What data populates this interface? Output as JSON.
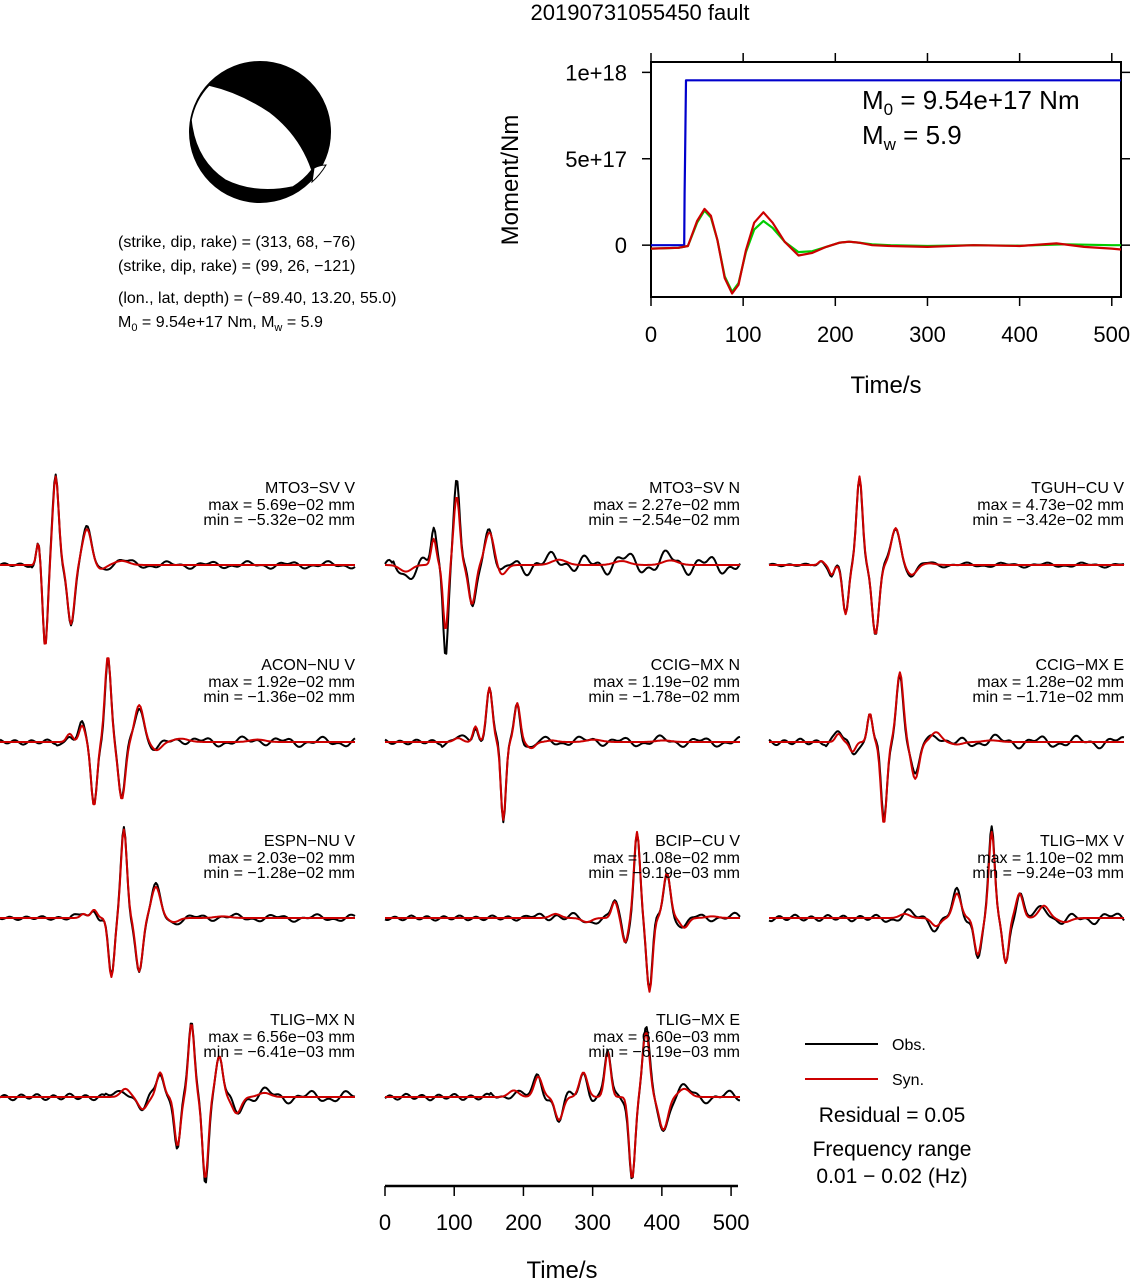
{
  "title": "20190731055450 fault",
  "beachball": {
    "colors": {
      "fill": "#000000",
      "background": "#ffffff"
    },
    "planes": [
      {
        "strike": 313,
        "dip": 68,
        "rake": -76
      },
      {
        "strike": 99,
        "dip": 26,
        "rake": -121
      }
    ],
    "info": {
      "line1": "(strike, dip, rake) = (313, 68, −76)",
      "line2": "(strike, dip, rake) = (99, 26, −121)",
      "line3": "(lon., lat, depth) = (−89.40, 13.20, 55.0)",
      "line4_m0_prefix": "M",
      "line4_m0_sub": "0",
      "line4_m0_rest": " = 9.54e+17 Nm, M",
      "line4_mw_sub": "w",
      "line4_mw_rest": " = 5.9"
    }
  },
  "chart_data": [
    {
      "type": "line",
      "xlabel": "Time/s",
      "ylabel": "Moment/Nm",
      "xlim": [
        0,
        510
      ],
      "ylim": [
        -300000000000000000,
        1060000000000000000
      ],
      "xticks": [
        0,
        100,
        200,
        300,
        400,
        500
      ],
      "xtick_labels": [
        "0",
        "100",
        "200",
        "300",
        "400",
        "500"
      ],
      "yticks": [
        0,
        500000000000000000,
        1000000000000000000
      ],
      "ytick_labels": [
        "0",
        "5e+17",
        "1e+18"
      ],
      "grid": false,
      "annotation": {
        "m0_symbol": "M",
        "m0_sub": "0",
        "m0_value": " = 9.54e+17 Nm",
        "mw_symbol": "M",
        "mw_sub": "w",
        "mw_value": " = 5.9"
      },
      "series": [
        {
          "color": "#0000cc",
          "x": [
            0,
            36,
            36.5,
            37,
            38,
            510
          ],
          "y": [
            0,
            0,
            300000000000000000,
            520000000000000000,
            954000000000000000,
            954000000000000000
          ]
        },
        {
          "color": "#00cc00",
          "x": [
            0,
            30,
            40,
            50,
            58,
            65,
            72,
            80,
            88,
            95,
            103,
            112,
            122,
            132,
            145,
            160,
            175,
            190,
            205,
            215,
            225,
            240,
            260,
            300,
            350,
            400,
            450,
            500,
            510
          ],
          "y": [
            -20000000000000000,
            -15000000000000000,
            -5000000000000000,
            130000000000000000,
            200000000000000000,
            160000000000000000,
            30000000000000000,
            -180000000000000000,
            -270000000000000000,
            -220000000000000000,
            -40000000000000000,
            90000000000000000,
            140000000000000000,
            100000000000000000,
            20000000000000000,
            -40000000000000000,
            -35000000000000000,
            -10000000000000000,
            15000000000000000,
            20000000000000000,
            15000000000000000,
            5000000000000000,
            0,
            -5000000000000000,
            0,
            -3000000000000000,
            5000000000000000,
            0,
            0
          ]
        },
        {
          "color": "#cc0000",
          "x": [
            0,
            30,
            40,
            50,
            58,
            65,
            72,
            80,
            88,
            95,
            103,
            112,
            122,
            132,
            145,
            160,
            175,
            190,
            205,
            215,
            225,
            240,
            260,
            300,
            350,
            400,
            440,
            470,
            500,
            510
          ],
          "y": [
            -20000000000000000,
            -15000000000000000,
            -5000000000000000,
            140000000000000000,
            210000000000000000,
            170000000000000000,
            30000000000000000,
            -190000000000000000,
            -280000000000000000,
            -230000000000000000,
            -30000000000000000,
            130000000000000000,
            190000000000000000,
            130000000000000000,
            20000000000000000,
            -60000000000000000,
            -45000000000000000,
            -10000000000000000,
            15000000000000000,
            20000000000000000,
            15000000000000000,
            0,
            -5000000000000000,
            -10000000000000000,
            0,
            -5000000000000000,
            10000000000000000,
            -10000000000000000,
            -20000000000000000,
            -25000000000000000
          ]
        }
      ]
    },
    {
      "type": "line",
      "xlabel": "Time/s",
      "xlim": [
        0,
        510
      ],
      "xticks": [
        0,
        100,
        200,
        300,
        400,
        500
      ],
      "xtick_labels": [
        "0",
        "100",
        "200",
        "300",
        "400",
        "500"
      ],
      "legend": {
        "placement": "bottom-right",
        "entries": [
          {
            "name": "Obs.",
            "color": "#000000"
          },
          {
            "name": "Syn.",
            "color": "#cc0000"
          }
        ]
      },
      "residual": "Residual = 0.05",
      "freq_title": "Frequency range",
      "freq_range": "0.01 − 0.02 (Hz)",
      "traces": [
        {
          "name": "MTO3−SV V",
          "max": "max = 5.69e−02 mm",
          "min": "min = −5.32e−02 mm",
          "col": 0,
          "row": 0,
          "onset": 45,
          "pulses": [
            [
              55,
              0.28,
              4
            ],
            [
              65,
              -1.0,
              5
            ],
            [
              80,
              1.08,
              6
            ],
            [
              102,
              -0.72,
              7
            ],
            [
              125,
              0.44,
              9
            ],
            [
              145,
              -0.05,
              10
            ],
            [
              175,
              0.05,
              14
            ]
          ],
          "obs_noise": 0.03,
          "syn_scale": 1.0
        },
        {
          "name": "MTO3−SV N",
          "max": "max = 2.27e−02 mm",
          "min": "min = −2.54e−02 mm",
          "col": 1,
          "row": 0,
          "onset": 10,
          "pulses": [
            [
              30,
              -0.1,
              12
            ],
            [
              70,
              0.4,
              5
            ],
            [
              87,
              -1.0,
              5
            ],
            [
              103,
              1.05,
              6
            ],
            [
              125,
              -0.6,
              7
            ],
            [
              150,
              0.5,
              9
            ],
            [
              168,
              -0.15,
              9
            ],
            [
              250,
              0.08,
              15
            ],
            [
              340,
              0.06,
              15
            ],
            [
              410,
              0.07,
              15
            ]
          ],
          "obs_noise": 0.08,
          "syn_scale": 0.8
        },
        {
          "name": "TGUH−CU V",
          "max": "max = 4.73e−02 mm",
          "min": "min = −3.42e−02 mm",
          "col": 2,
          "row": 0,
          "onset": 60,
          "pulses": [
            [
              75,
              0.05,
              5
            ],
            [
              90,
              -0.12,
              5
            ],
            [
              110,
              -0.6,
              6
            ],
            [
              130,
              1.08,
              6
            ],
            [
              153,
              -0.85,
              7
            ],
            [
              182,
              0.45,
              9
            ],
            [
              205,
              -0.12,
              10
            ],
            [
              230,
              0.02,
              12
            ]
          ],
          "obs_noise": 0.02,
          "syn_scale": 1.0
        },
        {
          "name": "ACON−NU V",
          "max": "max = 1.92e−02 mm",
          "min": "min = −1.36e−02 mm",
          "col": 0,
          "row": 1,
          "onset": 80,
          "pulses": [
            [
              100,
              0.1,
              6
            ],
            [
              118,
              0.2,
              6
            ],
            [
              135,
              -0.78,
              6
            ],
            [
              155,
              1.05,
              6
            ],
            [
              175,
              -0.7,
              7
            ],
            [
              200,
              0.45,
              9
            ],
            [
              225,
              -0.1,
              10
            ],
            [
              260,
              0.04,
              15
            ],
            [
              370,
              0.03,
              15
            ]
          ],
          "obs_noise": 0.04,
          "syn_scale": 1.0
        },
        {
          "name": "CCIG−MX N",
          "max": "max = 1.19e−02 mm",
          "min": "min = −1.78e−02 mm",
          "col": 1,
          "row": 1,
          "onset": 80,
          "pulses": [
            [
              105,
              0.05,
              8
            ],
            [
              130,
              0.2,
              5
            ],
            [
              150,
              0.7,
              6
            ],
            [
              170,
              -1.0,
              5
            ],
            [
              190,
              0.5,
              6
            ],
            [
              210,
              -0.08,
              8
            ],
            [
              240,
              0.02,
              10
            ],
            [
              300,
              0.03,
              15
            ],
            [
              400,
              0.02,
              15
            ]
          ],
          "obs_noise": 0.04,
          "syn_scale": 0.95
        },
        {
          "name": "CCIG−MX E",
          "max": "max = 1.28e−02 mm",
          "min": "min = −1.71e−02 mm",
          "col": 2,
          "row": 1,
          "onset": 80,
          "pulses": [
            [
              100,
              0.1,
              6
            ],
            [
              120,
              -0.12,
              6
            ],
            [
              145,
              0.35,
              5
            ],
            [
              165,
              -1.0,
              6
            ],
            [
              188,
              0.85,
              7
            ],
            [
              210,
              -0.45,
              8
            ],
            [
              240,
              0.12,
              10
            ],
            [
              270,
              -0.03,
              12
            ],
            [
              320,
              0.02,
              15
            ]
          ],
          "obs_noise": 0.05,
          "syn_scale": 1.0
        },
        {
          "name": "ESPN−NU V",
          "max": "max = 2.03e−02 mm",
          "min": "min = −1.28e−02 mm",
          "col": 0,
          "row": 2,
          "onset": 100,
          "pulses": [
            [
              120,
              0.05,
              6
            ],
            [
              135,
              0.1,
              6
            ],
            [
              160,
              -0.72,
              6
            ],
            [
              178,
              1.08,
              6
            ],
            [
              200,
              -0.65,
              7
            ],
            [
              224,
              0.38,
              9
            ],
            [
              250,
              -0.05,
              10
            ],
            [
              320,
              0.02,
              15
            ]
          ],
          "obs_noise": 0.03,
          "syn_scale": 1.0
        },
        {
          "name": "BCIP−CU V",
          "max": "max = 1.08e−02 mm",
          "min": "min = −9.19e−03 mm",
          "col": 1,
          "row": 2,
          "onset": 200,
          "pulses": [
            [
              245,
              0.05,
              10
            ],
            [
              290,
              -0.05,
              10
            ],
            [
              330,
              0.2,
              6
            ],
            [
              345,
              -0.3,
              6
            ],
            [
              362,
              1.05,
              6
            ],
            [
              380,
              -0.9,
              6
            ],
            [
              405,
              0.55,
              7
            ],
            [
              430,
              -0.12,
              8
            ],
            [
              470,
              0.02,
              12
            ]
          ],
          "obs_noise": 0.04,
          "syn_scale": 1.0
        },
        {
          "name": "TLIG−MX V",
          "max": "max = 1.10e−02 mm",
          "min": "min = −9.24e−03 mm",
          "col": 2,
          "row": 2,
          "onset": 160,
          "pulses": [
            [
              195,
              0.05,
              10
            ],
            [
              240,
              -0.1,
              9
            ],
            [
              270,
              0.3,
              8
            ],
            [
              300,
              -0.45,
              7
            ],
            [
              320,
              1.05,
              6
            ],
            [
              340,
              -0.55,
              6
            ],
            [
              360,
              0.3,
              7
            ],
            [
              395,
              0.15,
              10
            ],
            [
              425,
              -0.05,
              12
            ]
          ],
          "obs_noise": 0.05,
          "syn_scale": 1.0
        },
        {
          "name": "TLIG−MX N",
          "max": "max = 6.56e−03 mm",
          "min": "min = −6.41e−03 mm",
          "col": 0,
          "row": 3,
          "onset": 150,
          "pulses": [
            [
              180,
              0.1,
              9
            ],
            [
              205,
              -0.15,
              9
            ],
            [
              230,
              0.3,
              7
            ],
            [
              255,
              -0.6,
              6
            ],
            [
              275,
              0.9,
              6
            ],
            [
              295,
              -1.0,
              6
            ],
            [
              315,
              0.5,
              7
            ],
            [
              340,
              -0.2,
              9
            ],
            [
              380,
              0.05,
              12
            ]
          ],
          "obs_noise": 0.05,
          "syn_scale": 1.0
        },
        {
          "name": "TLIG−MX E",
          "max": "max = 6.60e−03 mm",
          "min": "min = −6.19e−03 mm",
          "col": 1,
          "row": 3,
          "onset": 150,
          "pulses": [
            [
              185,
              0.08,
              10
            ],
            [
              220,
              0.25,
              8
            ],
            [
              250,
              -0.28,
              8
            ],
            [
              285,
              0.3,
              8
            ],
            [
              320,
              0.55,
              6
            ],
            [
              355,
              -1.0,
              6
            ],
            [
              375,
              0.8,
              7
            ],
            [
              400,
              -0.4,
              9
            ],
            [
              430,
              0.1,
              11
            ]
          ],
          "obs_noise": 0.05,
          "syn_scale": 1.0
        }
      ]
    }
  ]
}
